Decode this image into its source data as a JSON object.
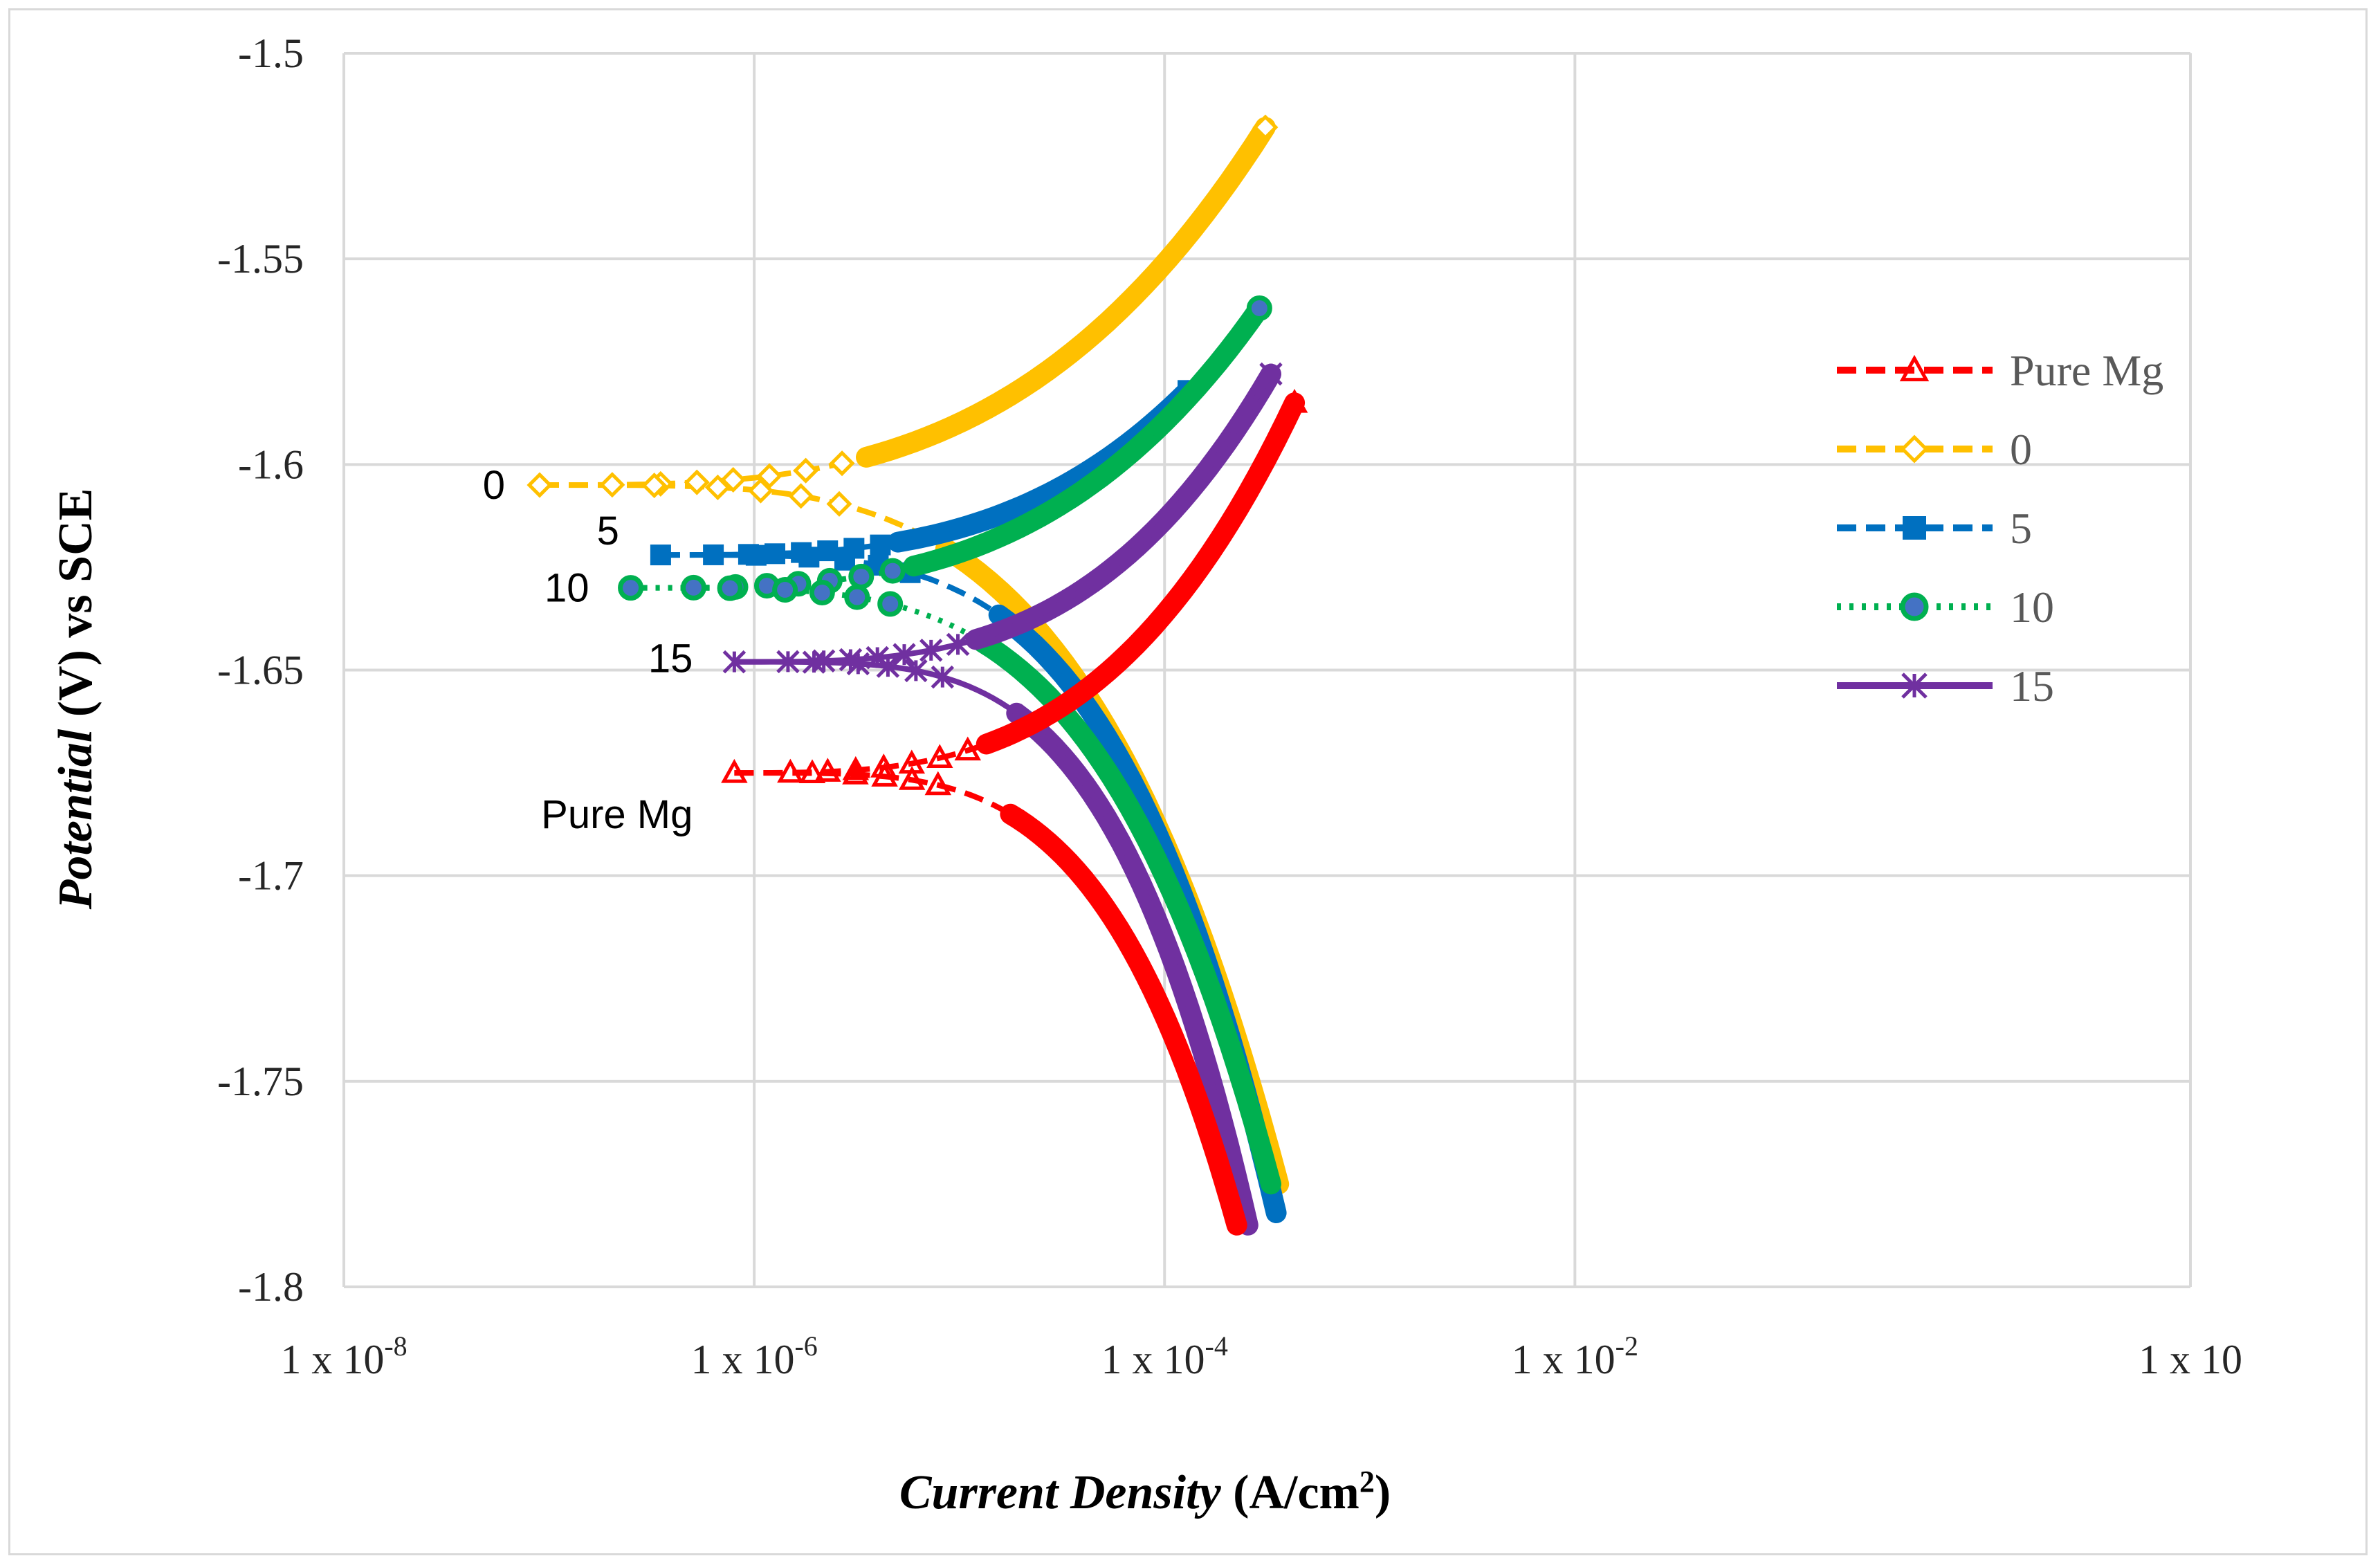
{
  "chart_data": {
    "type": "line",
    "title": "",
    "xlabel_italic": "Current Density",
    "xlabel_unit": " (A/cm",
    "xlabel_unit_sup": "2",
    "xlabel_unit_close": ")",
    "ylabel_italic": "Potential",
    "ylabel_rest": " (V) vs SCE",
    "x_scale": "log",
    "xlim": [
      1e-08,
      10
    ],
    "ylim": [
      -1.8,
      -1.5
    ],
    "y_ticks": [
      "-1.5",
      "-1.55",
      "-1.6",
      "-1.65",
      "-1.7",
      "-1.75",
      "-1.8"
    ],
    "x_ticks": [
      {
        "base": "1 x 10",
        "exp": "-8"
      },
      {
        "base": "1 x 10",
        "exp": "-6"
      },
      {
        "base": "1 x 10",
        "exp": "-4"
      },
      {
        "base": "1 x 10",
        "exp": "-2"
      },
      {
        "base": "1 x 10",
        "exp": ""
      }
    ],
    "grid": true,
    "legend_position": "right",
    "series": [
      {
        "name": "Pure Mg",
        "color": "#ff0000",
        "dash": "dashed",
        "marker": "triangle-open",
        "ecorr": -1.675,
        "icorr_start": 8e-07,
        "ipass": 0.00023,
        "i_anodic_end": 0.00043,
        "e_anodic_end": -1.585,
        "e_cathodic_end": -1.785,
        "i_cathodic_end": 0.000225,
        "label": "Pure Mg"
      },
      {
        "name": "0",
        "color": "#ffc000",
        "dash": "dashed",
        "marker": "diamond-open",
        "ecorr": -1.605,
        "icorr_start": 9e-08,
        "ipass": 0.00026,
        "i_anodic_end": 0.00031,
        "e_anodic_end": -1.518,
        "e_cathodic_end": -1.775,
        "i_cathodic_end": 0.00036,
        "label": "0"
      },
      {
        "name": "5",
        "color": "#0070c0",
        "dash": "dashed",
        "marker": "square",
        "ecorr": -1.622,
        "icorr_start": 3.5e-07,
        "ipass": 0.000125,
        "i_anodic_end": 0.00013,
        "e_anodic_end": -1.582,
        "e_cathodic_end": -1.782,
        "i_cathodic_end": 0.00035,
        "label": "5"
      },
      {
        "name": "10",
        "color": "#00b050",
        "dash": "dotted",
        "marker": "circle",
        "ecorr": -1.63,
        "icorr_start": 2.5e-07,
        "ipass": 0.00028,
        "i_anodic_end": 0.00029,
        "e_anodic_end": -1.562,
        "e_cathodic_end": -1.775,
        "i_cathodic_end": 0.00033,
        "label": "10"
      },
      {
        "name": "15",
        "color": "#7030a0",
        "dash": "solid",
        "marker": "star",
        "ecorr": -1.648,
        "icorr_start": 8e-07,
        "ipass": 0.00032,
        "i_anodic_end": 0.00033,
        "e_anodic_end": -1.578,
        "e_cathodic_end": -1.785,
        "i_cathodic_end": 0.000255,
        "label": "15"
      }
    ]
  }
}
